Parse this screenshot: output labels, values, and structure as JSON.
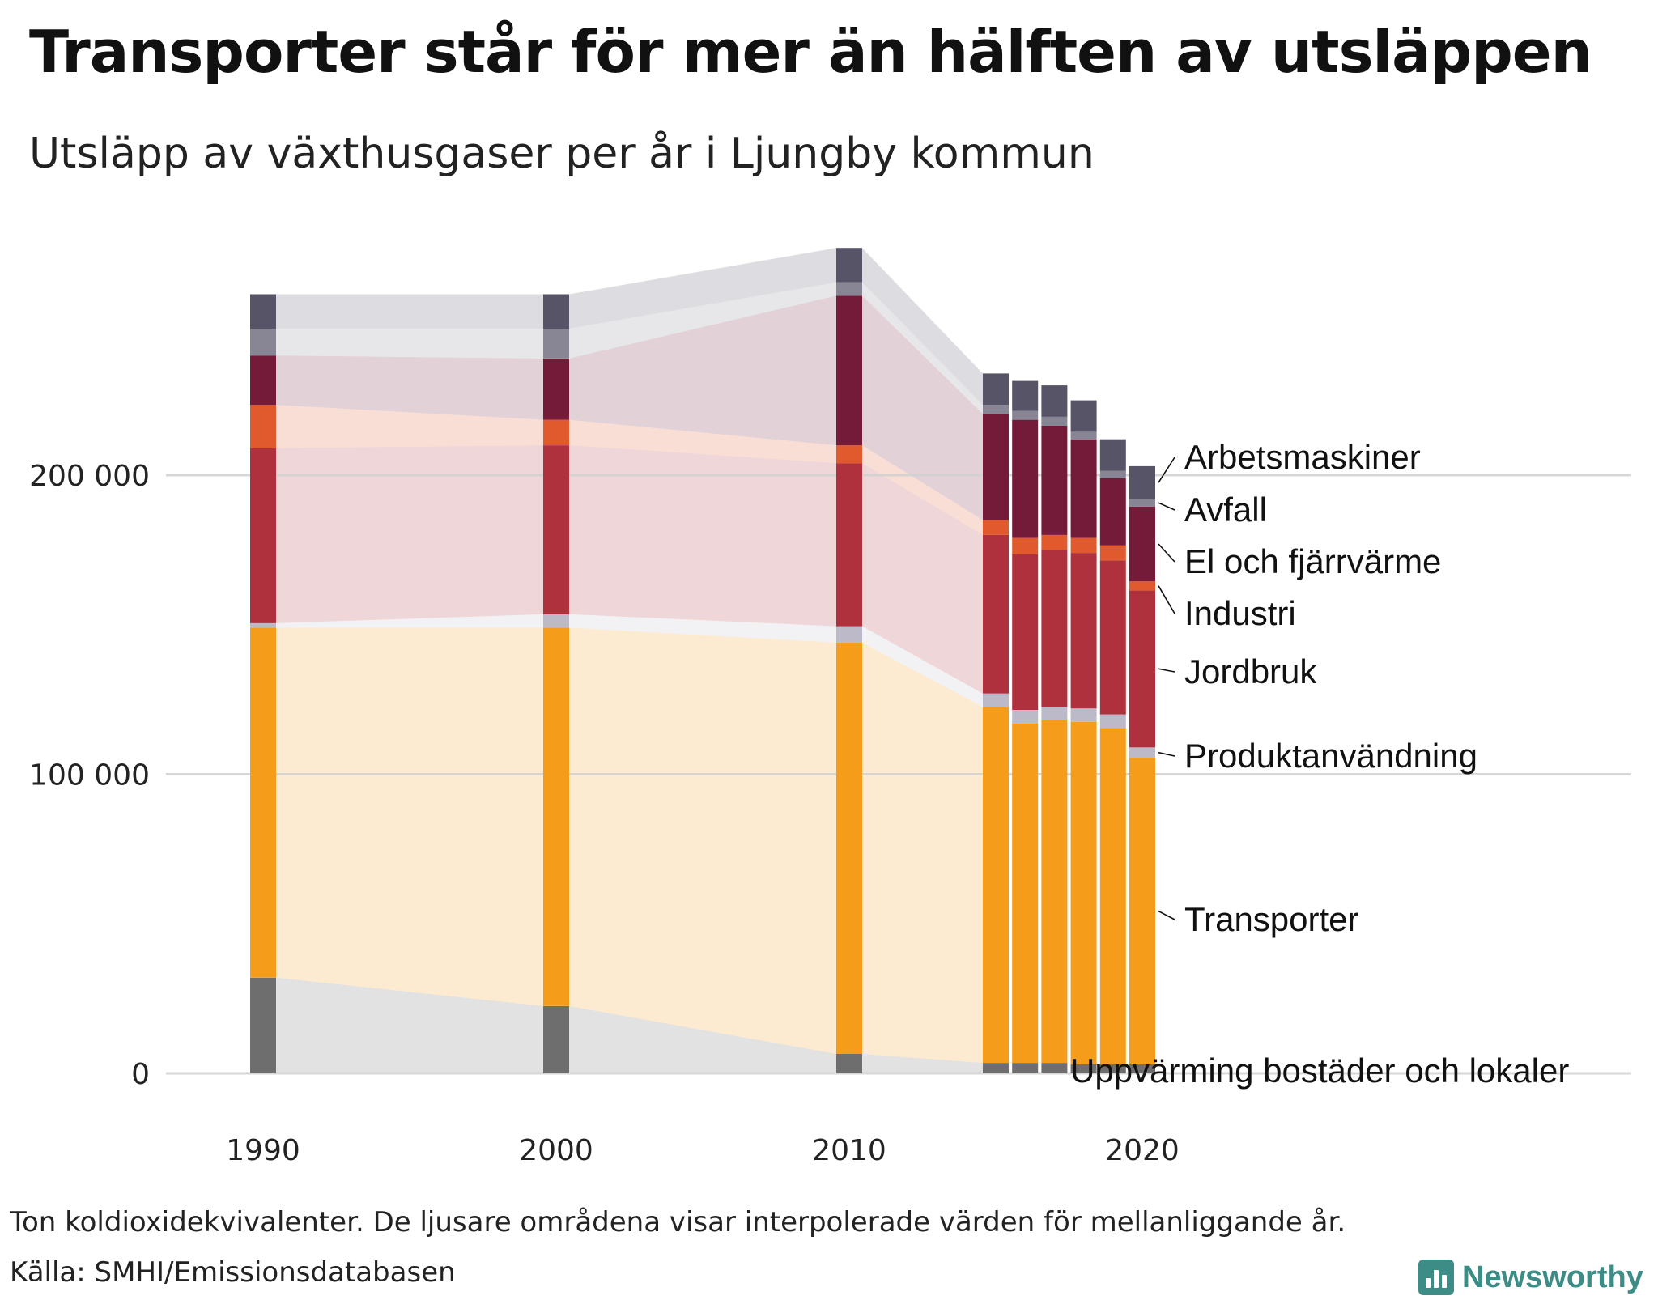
{
  "title": "Transporter står för mer än hälften av utsläppen",
  "subtitle": "Utsläpp av växthusgaser per år i Ljungby kommun",
  "note": "Ton koldioxidekvivalenter. De ljusare områdena visar interpolerade värden för mellanliggande år.",
  "source": "Källa: SMHI/Emissionsdatabasen",
  "logo": {
    "text": "Newsworthy",
    "icon": "bar-chart-logo-icon"
  },
  "chart_data": {
    "type": "bar",
    "stacked": true,
    "grid": true,
    "legend": "right-side direct labels",
    "x": [
      1990,
      2000,
      2010,
      2015,
      2016,
      2017,
      2018,
      2019,
      2020
    ],
    "xticks": [
      "1990",
      "2000",
      "2010",
      "2020"
    ],
    "yticks": [
      "0",
      "100 000",
      "200 000"
    ],
    "ylim": [
      0,
      280000
    ],
    "series": [
      {
        "name": "Uppvärming bostäder och lokaler",
        "color": "#6e6e6e",
        "values": [
          32000,
          22500,
          6500,
          3500,
          3500,
          3500,
          3000,
          3000,
          3000
        ]
      },
      {
        "name": "Transporter",
        "color": "#f59c1a",
        "values": [
          117000,
          126500,
          137500,
          119000,
          113500,
          114500,
          114500,
          112500,
          102500
        ]
      },
      {
        "name": "Produktanvändning",
        "color": "#bcbac8",
        "values": [
          1500,
          4500,
          5500,
          4500,
          4500,
          4500,
          4500,
          4500,
          3500
        ]
      },
      {
        "name": "Jordbruk",
        "color": "#b0313e",
        "values": [
          58500,
          56500,
          54500,
          53000,
          52000,
          52500,
          52000,
          51500,
          52500
        ]
      },
      {
        "name": "Industri",
        "color": "#e05a2e",
        "values": [
          14500,
          8500,
          6000,
          5000,
          5500,
          5000,
          5000,
          5000,
          3000
        ]
      },
      {
        "name": "El och fjärrvärme",
        "color": "#751b3a",
        "values": [
          16500,
          20500,
          50000,
          35500,
          39500,
          36500,
          33000,
          22500,
          25000
        ]
      },
      {
        "name": "Avfall",
        "color": "#888594",
        "values": [
          9000,
          10000,
          4500,
          3000,
          3000,
          3000,
          2500,
          2500,
          2500
        ]
      },
      {
        "name": "Arbetsmaskiner",
        "color": "#575468",
        "values": [
          11500,
          11500,
          11500,
          10500,
          10000,
          10500,
          10500,
          10500,
          11000
        ]
      }
    ]
  }
}
